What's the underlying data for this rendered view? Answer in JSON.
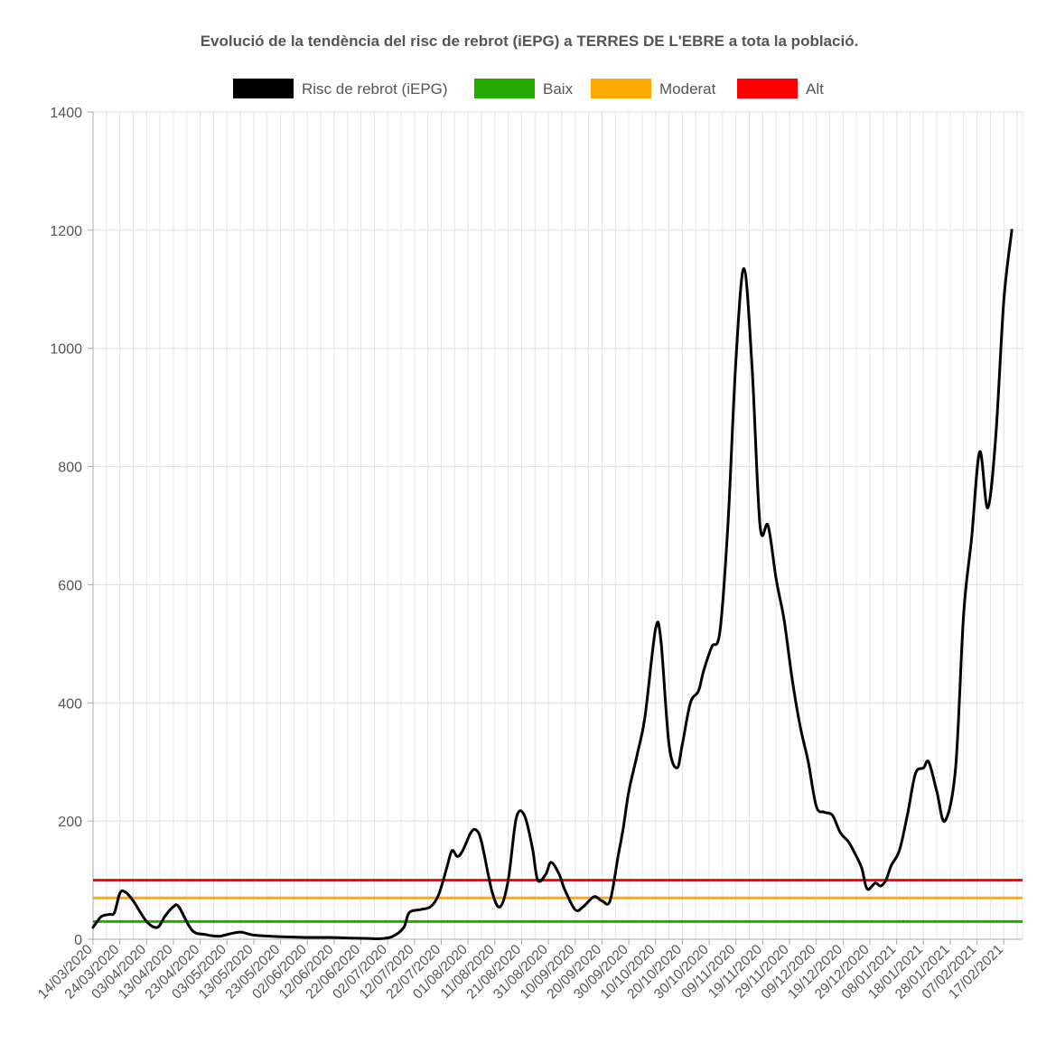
{
  "chart_data": {
    "type": "line",
    "title": "Evolució de la tendència del risc de rebrot (iEPG) a TERRES DE L'EBRE a tota la població.",
    "legend_position": "top",
    "grid": true,
    "ylim": [
      0,
      1400
    ],
    "y_ticks": [
      0,
      200,
      400,
      600,
      800,
      1000,
      1200,
      1400
    ],
    "x_range": [
      "2020-03-14",
      "2021-02-24"
    ],
    "x_tick_labels": [
      "14/03/2020",
      "24/03/2020",
      "03/04/2020",
      "13/04/2020",
      "23/04/2020",
      "03/05/2020",
      "13/05/2020",
      "23/05/2020",
      "02/06/2020",
      "12/06/2020",
      "22/06/2020",
      "02/07/2020",
      "12/07/2020",
      "22/07/2020",
      "01/08/2020",
      "11/08/2020",
      "21/08/2020",
      "31/08/2020",
      "10/09/2020",
      "20/09/2020",
      "30/09/2020",
      "10/10/2020",
      "20/10/2020",
      "30/10/2020",
      "09/11/2020",
      "19/11/2020",
      "29/11/2020",
      "09/12/2020",
      "19/12/2020",
      "29/12/2020",
      "08/01/2021",
      "18/01/2021",
      "28/01/2021",
      "07/02/2021",
      "17/02/2021"
    ],
    "series": [
      {
        "name": "Risc de rebrot (iEPG)",
        "color": "#000000",
        "points": [
          [
            "2020-03-14",
            20
          ],
          [
            "2020-03-17",
            38
          ],
          [
            "2020-03-20",
            42
          ],
          [
            "2020-03-22",
            45
          ],
          [
            "2020-03-24",
            78
          ],
          [
            "2020-03-26",
            80
          ],
          [
            "2020-03-29",
            65
          ],
          [
            "2020-04-03",
            30
          ],
          [
            "2020-04-07",
            20
          ],
          [
            "2020-04-10",
            40
          ],
          [
            "2020-04-13",
            55
          ],
          [
            "2020-04-15",
            55
          ],
          [
            "2020-04-20",
            15
          ],
          [
            "2020-04-25",
            8
          ],
          [
            "2020-04-30",
            5
          ],
          [
            "2020-05-03",
            8
          ],
          [
            "2020-05-08",
            12
          ],
          [
            "2020-05-13",
            7
          ],
          [
            "2020-05-20",
            5
          ],
          [
            "2020-05-25",
            4
          ],
          [
            "2020-06-01",
            3
          ],
          [
            "2020-06-10",
            3
          ],
          [
            "2020-06-18",
            2
          ],
          [
            "2020-06-26",
            1
          ],
          [
            "2020-06-30",
            1
          ],
          [
            "2020-07-04",
            5
          ],
          [
            "2020-07-08",
            20
          ],
          [
            "2020-07-10",
            45
          ],
          [
            "2020-07-14",
            50
          ],
          [
            "2020-07-18",
            55
          ],
          [
            "2020-07-21",
            75
          ],
          [
            "2020-07-24",
            120
          ],
          [
            "2020-07-26",
            150
          ],
          [
            "2020-07-28",
            140
          ],
          [
            "2020-07-30",
            150
          ],
          [
            "2020-08-02",
            180
          ],
          [
            "2020-08-04",
            185
          ],
          [
            "2020-08-06",
            165
          ],
          [
            "2020-08-10",
            80
          ],
          [
            "2020-08-13",
            55
          ],
          [
            "2020-08-16",
            100
          ],
          [
            "2020-08-19",
            205
          ],
          [
            "2020-08-22",
            210
          ],
          [
            "2020-08-25",
            155
          ],
          [
            "2020-08-27",
            100
          ],
          [
            "2020-08-30",
            110
          ],
          [
            "2020-09-01",
            130
          ],
          [
            "2020-09-04",
            110
          ],
          [
            "2020-09-06",
            85
          ],
          [
            "2020-09-10",
            50
          ],
          [
            "2020-09-13",
            55
          ],
          [
            "2020-09-17",
            72
          ],
          [
            "2020-09-20",
            65
          ],
          [
            "2020-09-23",
            65
          ],
          [
            "2020-09-26",
            140
          ],
          [
            "2020-09-28",
            190
          ],
          [
            "2020-09-30",
            250
          ],
          [
            "2020-10-03",
            310
          ],
          [
            "2020-10-06",
            375
          ],
          [
            "2020-10-10",
            525
          ],
          [
            "2020-10-12",
            505
          ],
          [
            "2020-10-15",
            330
          ],
          [
            "2020-10-18",
            290
          ],
          [
            "2020-10-20",
            330
          ],
          [
            "2020-10-23",
            400
          ],
          [
            "2020-10-26",
            420
          ],
          [
            "2020-10-28",
            455
          ],
          [
            "2020-10-31",
            495
          ],
          [
            "2020-11-03",
            520
          ],
          [
            "2020-11-06",
            700
          ],
          [
            "2020-11-09",
            980
          ],
          [
            "2020-11-12",
            1135
          ],
          [
            "2020-11-15",
            970
          ],
          [
            "2020-11-18",
            700
          ],
          [
            "2020-11-21",
            700
          ],
          [
            "2020-11-24",
            610
          ],
          [
            "2020-11-27",
            540
          ],
          [
            "2020-11-30",
            440
          ],
          [
            "2020-12-03",
            360
          ],
          [
            "2020-12-06",
            300
          ],
          [
            "2020-12-09",
            225
          ],
          [
            "2020-12-12",
            215
          ],
          [
            "2020-12-15",
            210
          ],
          [
            "2020-12-18",
            180
          ],
          [
            "2020-12-21",
            165
          ],
          [
            "2020-12-24",
            140
          ],
          [
            "2020-12-26",
            120
          ],
          [
            "2020-12-28",
            85
          ],
          [
            "2020-12-31",
            95
          ],
          [
            "2021-01-02",
            90
          ],
          [
            "2021-01-04",
            100
          ],
          [
            "2021-01-06",
            125
          ],
          [
            "2021-01-09",
            150
          ],
          [
            "2021-01-12",
            210
          ],
          [
            "2021-01-15",
            280
          ],
          [
            "2021-01-18",
            290
          ],
          [
            "2021-01-20",
            300
          ],
          [
            "2021-01-23",
            250
          ],
          [
            "2021-01-26",
            200
          ],
          [
            "2021-01-30",
            290
          ],
          [
            "2021-02-02",
            550
          ],
          [
            "2021-02-05",
            680
          ],
          [
            "2021-02-08",
            825
          ],
          [
            "2021-02-11",
            730
          ],
          [
            "2021-02-14",
            850
          ],
          [
            "2021-02-17",
            1080
          ],
          [
            "2021-02-20",
            1200
          ]
        ]
      },
      {
        "name": "Baix",
        "color": "#22aa00",
        "values": [
          30
        ]
      },
      {
        "name": "Moderat",
        "color": "#ffaa00",
        "values": [
          70
        ]
      },
      {
        "name": "Alt",
        "color": "#ff0000",
        "values": [
          100
        ]
      }
    ]
  }
}
